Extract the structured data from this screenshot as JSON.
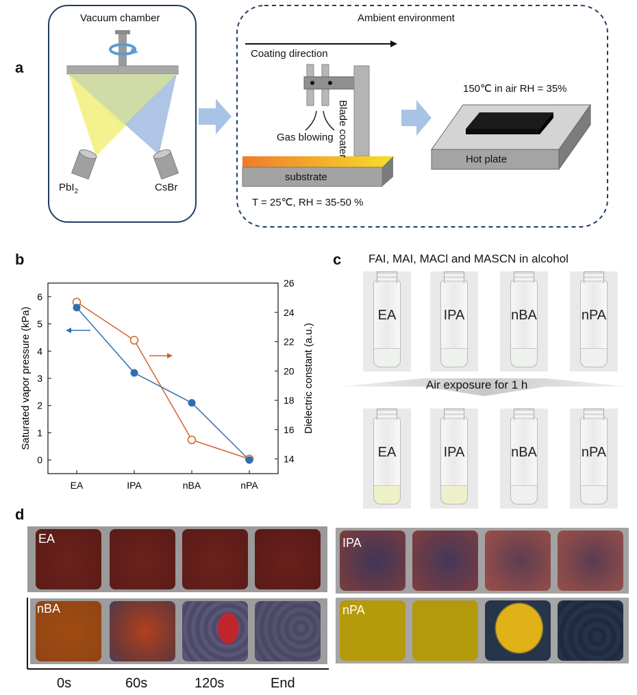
{
  "panel_a": {
    "letter": "a",
    "vacuum_chamber": "Vacuum chamber",
    "source_left": "PbI",
    "source_left_sub": "2",
    "source_right": "CsBr",
    "ambient": "Ambient environment",
    "coating_direction": "Coating direction",
    "blade_coater": "Blade coater",
    "gas_blowing": "Gas blowing",
    "substrate": "substrate",
    "conditions": "T = 25℃, RH = 35-50 %",
    "anneal": "150℃ in air RH = 35%",
    "hot_plate": "Hot plate"
  },
  "panel_b": {
    "letter": "b"
  },
  "panel_c": {
    "letter": "c",
    "title": "FAI, MAI, MACl and MASCN in alcohol",
    "arrow_label": "Air exposure for 1 h",
    "vials_before": [
      "EA",
      "IPA",
      "nBA",
      "nPA"
    ],
    "vials_after": [
      "EA",
      "IPA",
      "nBA",
      "nPA"
    ]
  },
  "panel_d": {
    "letter": "d",
    "rows": [
      "EA",
      "IPA",
      "nBA",
      "nPA"
    ],
    "time_labels": [
      "0s",
      "60s",
      "120s",
      "End"
    ]
  },
  "colors": {
    "blue_series": "#2e6fae",
    "orange_series": "#d5602a",
    "chamber_border": "#1f3b63",
    "arrow_fill": "#a9c3e6"
  },
  "chart_data": {
    "type": "line",
    "categories": [
      "EA",
      "IPA",
      "nBA",
      "nPA"
    ],
    "series": [
      {
        "name": "Saturated vapor pressure",
        "axis": "left",
        "marker": "filled",
        "values": [
          5.6,
          3.2,
          2.1,
          0.0
        ]
      },
      {
        "name": "Dielectric constant",
        "axis": "right",
        "marker": "open",
        "values": [
          24.7,
          22.1,
          15.3,
          14.0
        ]
      }
    ],
    "ylabel": "Saturated vapor pressure (kPa)",
    "ylabel_right": "Dielectric constant (a.u.)",
    "ylim": [
      -0.5,
      6.5
    ],
    "ylim_right": [
      13.0,
      26.0
    ],
    "yticks": [
      "0",
      "1",
      "2",
      "3",
      "4",
      "5",
      "6"
    ],
    "yticks_right": [
      "14",
      "16",
      "18",
      "20",
      "22",
      "24",
      "26"
    ]
  }
}
